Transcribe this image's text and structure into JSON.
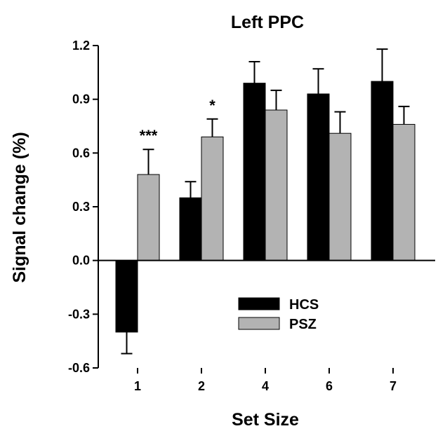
{
  "chart_data": {
    "type": "bar",
    "title": "Left PPC",
    "xlabel": "Set Size",
    "ylabel": "Signal change (%)",
    "categories": [
      "1",
      "2",
      "4",
      "6",
      "7"
    ],
    "ylim": [
      -0.6,
      1.2
    ],
    "yticks": [
      "1.2",
      "0.9",
      "0.6",
      "0.3",
      "0.0",
      "-0.3",
      "-0.6"
    ],
    "ytick_values": [
      1.2,
      0.9,
      0.6,
      0.3,
      0.0,
      -0.3,
      -0.6
    ],
    "series": [
      {
        "name": "HCS",
        "color": "#000000",
        "values": [
          -0.4,
          0.35,
          0.99,
          0.93,
          1.0
        ],
        "errors": [
          0.12,
          0.09,
          0.12,
          0.14,
          0.18
        ]
      },
      {
        "name": "PSZ",
        "color": "#b3b3b3",
        "values": [
          0.48,
          0.69,
          0.84,
          0.71,
          0.76
        ],
        "errors": [
          0.14,
          0.1,
          0.11,
          0.12,
          0.1
        ]
      }
    ],
    "annotations": [
      {
        "category": "1",
        "text": "***"
      },
      {
        "category": "2",
        "text": "*"
      }
    ],
    "legend": {
      "placement": "lower-center",
      "entries": [
        "HCS",
        "PSZ"
      ]
    },
    "grid": false
  }
}
